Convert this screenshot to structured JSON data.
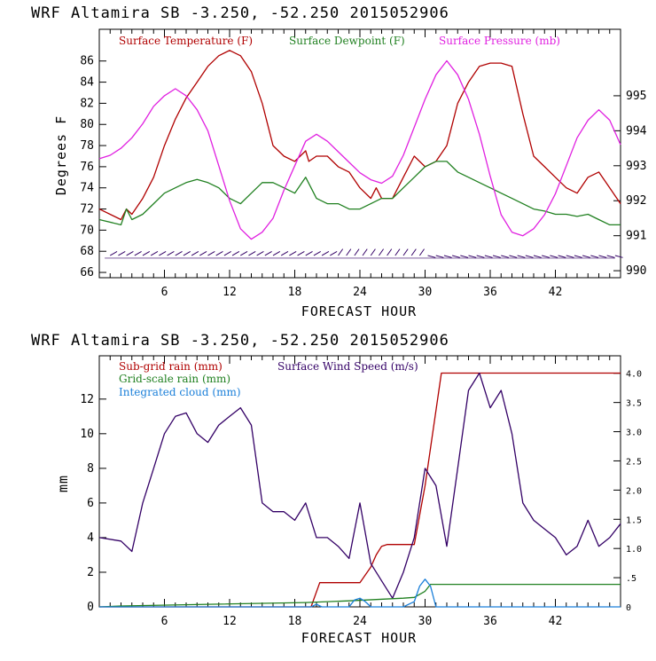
{
  "chart_data": [
    {
      "type": "line",
      "header": "WRF  Altamira  SB  -3.250, -52.250  2015052906",
      "xlabel": "FORECAST HOUR",
      "ylabel": "Degrees F",
      "xlim": [
        0,
        48
      ],
      "xticks": [
        6,
        12,
        18,
        24,
        30,
        36,
        42
      ],
      "ylim": [
        65.5,
        89
      ],
      "yticks": [
        66,
        68,
        70,
        72,
        74,
        76,
        78,
        80,
        82,
        84,
        86
      ],
      "y2lim": [
        989.8,
        996.9
      ],
      "y2ticks": [
        990,
        991,
        992,
        993,
        994,
        995
      ],
      "series": [
        {
          "name": "Surface Temperature (F)",
          "color": "#b00000",
          "axis": "left",
          "x": [
            0,
            2,
            2.5,
            3,
            4,
            5,
            6,
            7,
            8,
            9,
            10,
            11,
            12,
            13,
            14,
            15,
            15.5,
            16,
            17,
            18,
            19,
            19.3,
            20,
            21,
            22,
            23,
            24,
            25,
            25.5,
            26,
            27,
            28,
            29,
            30,
            31,
            32,
            33,
            34,
            35,
            36,
            37,
            38,
            39,
            40,
            41,
            42,
            43,
            44,
            45,
            46,
            47,
            48
          ],
          "y": [
            72,
            71,
            72,
            71.5,
            73,
            75,
            78,
            80.5,
            82.5,
            84,
            85.5,
            86.5,
            87,
            86.5,
            85,
            82,
            80,
            78,
            77,
            76.5,
            77.5,
            76.5,
            77,
            77,
            76,
            75.5,
            74,
            73,
            74,
            73,
            73,
            75,
            77,
            76,
            76.5,
            78,
            82,
            84,
            85.5,
            85.8,
            85.8,
            85.5,
            81,
            77,
            76,
            75,
            74,
            73.5,
            75,
            75.5,
            74,
            72.5
          ]
        },
        {
          "name": "Surface Dewpoint (F)",
          "color": "#208020",
          "axis": "left",
          "x": [
            0,
            2,
            2.5,
            3,
            4,
            5,
            6,
            7,
            8,
            9,
            10,
            11,
            12,
            13,
            14,
            15,
            16,
            17,
            18,
            19,
            20,
            21,
            22,
            23,
            24,
            25,
            26,
            27,
            28,
            29,
            30,
            31,
            32,
            33,
            34,
            35,
            36,
            37,
            38,
            39,
            40,
            41,
            42,
            43,
            44,
            45,
            46,
            47,
            48
          ],
          "y": [
            71,
            70.5,
            72,
            71,
            71.5,
            72.5,
            73.5,
            74,
            74.5,
            74.8,
            74.5,
            74,
            73,
            72.5,
            73.5,
            74.5,
            74.5,
            74,
            73.5,
            75,
            73,
            72.5,
            72.5,
            72,
            72,
            72.5,
            73,
            73,
            74,
            75,
            76,
            76.5,
            76.5,
            75.5,
            75,
            74.5,
            74,
            73.5,
            73,
            72.5,
            72,
            71.8,
            71.5,
            71.5,
            71.3,
            71.5,
            71,
            70.5,
            70.5
          ]
        },
        {
          "name": "Surface Pressure (mb)",
          "color": "#e020e0",
          "axis": "right",
          "x": [
            0,
            1,
            2,
            3,
            4,
            5,
            6,
            7,
            8,
            9,
            10,
            11,
            12,
            13,
            14,
            15,
            16,
            17,
            18,
            19,
            20,
            21,
            22,
            23,
            24,
            25,
            26,
            27,
            28,
            29,
            30,
            31,
            32,
            33,
            34,
            35,
            36,
            37,
            38,
            39,
            40,
            41,
            42,
            43,
            44,
            45,
            46,
            47,
            48
          ],
          "y": [
            993.2,
            993.3,
            993.5,
            993.8,
            994.2,
            994.7,
            995.0,
            995.2,
            995.0,
            994.6,
            994.0,
            993.0,
            992.0,
            991.2,
            990.9,
            991.1,
            991.5,
            992.3,
            993.0,
            993.7,
            993.9,
            993.7,
            993.4,
            993.1,
            992.8,
            992.6,
            992.5,
            992.7,
            993.3,
            994.1,
            994.9,
            995.6,
            996.0,
            995.6,
            994.9,
            993.9,
            992.7,
            991.6,
            991.1,
            991.0,
            991.2,
            991.6,
            992.2,
            993.0,
            993.8,
            994.3,
            994.6,
            994.3,
            993.6
          ]
        }
      ],
      "wind_barbs": "surface wind barbs along y = 67.5"
    },
    {
      "type": "line",
      "header": "WRF  Altamira  SB  -3.250, -52.250  2015052906",
      "xlabel": "FORECAST HOUR",
      "ylabel": "mm",
      "xlim": [
        0,
        48
      ],
      "xticks": [
        6,
        12,
        18,
        24,
        30,
        36,
        42
      ],
      "ylim": [
        0,
        14.5
      ],
      "yticks": [
        0,
        2,
        4,
        6,
        8,
        10,
        12
      ],
      "y2lim": [
        0,
        4.3
      ],
      "y2ticks": [
        0,
        0.5,
        1.0,
        1.5,
        2.0,
        2.5,
        3.0,
        3.5,
        4.0
      ],
      "y2ticklabels": [
        "0",
        ".5",
        "1.0",
        "1.5",
        "2.0",
        "2.5",
        "3.0",
        "3.5",
        "4.0"
      ],
      "series": [
        {
          "name": "Sub-grid rain (mm)",
          "color": "#b00000",
          "axis": "left",
          "x": [
            0,
            19.5,
            20.3,
            24,
            25,
            25.5,
            26,
            26.5,
            29,
            30,
            31.5,
            48
          ],
          "y": [
            0,
            0,
            1.4,
            1.4,
            2.3,
            3,
            3.5,
            3.6,
            3.6,
            7,
            13.5,
            13.5
          ]
        },
        {
          "name": "Surface Wind Speed (m/s)",
          "color": "#330066",
          "axis": "left",
          "x": [
            0,
            2,
            3,
            4,
            5,
            6,
            7,
            8,
            9,
            10,
            11,
            12,
            13,
            14,
            15,
            16,
            17,
            18,
            19,
            20,
            21,
            22,
            23,
            24,
            25,
            26,
            27,
            28,
            29,
            30,
            31,
            32,
            33,
            34,
            35,
            36,
            37,
            38,
            39,
            40,
            41,
            42,
            43,
            44,
            45,
            46,
            47,
            48
          ],
          "y": [
            4,
            3.8,
            3.2,
            6,
            8,
            10,
            11,
            11.2,
            10,
            9.5,
            10.5,
            11,
            11.5,
            10.5,
            6,
            5.5,
            5.5,
            5,
            6,
            4,
            4,
            3.5,
            2.8,
            6,
            2.5,
            1.5,
            0.5,
            2,
            4,
            8,
            7,
            3.5,
            8,
            12.5,
            13.5,
            11.5,
            12.5,
            10,
            6,
            5,
            4.5,
            4,
            3,
            3.5,
            5,
            3.5,
            4,
            4.8
          ]
        },
        {
          "name": "Grid-scale rain (mm)",
          "color": "#208020",
          "axis": "left",
          "x": [
            0,
            2,
            10,
            19,
            23,
            28,
            29,
            30,
            30.5,
            48
          ],
          "y": [
            0,
            0.05,
            0.15,
            0.25,
            0.35,
            0.5,
            0.55,
            0.9,
            1.3,
            1.3
          ]
        },
        {
          "name": "Integrated cloud (mm)",
          "color": "#1a7fd9",
          "axis": "left",
          "x": [
            0,
            19.5,
            20,
            20.5,
            21,
            23,
            23.5,
            24,
            24.5,
            25,
            28,
            29,
            29.5,
            30,
            30.5,
            31,
            48
          ],
          "y": [
            0,
            0,
            0.15,
            0,
            0,
            0,
            0.4,
            0.5,
            0.3,
            0,
            0,
            0.3,
            1.2,
            1.6,
            1.2,
            0,
            0
          ]
        }
      ]
    }
  ]
}
